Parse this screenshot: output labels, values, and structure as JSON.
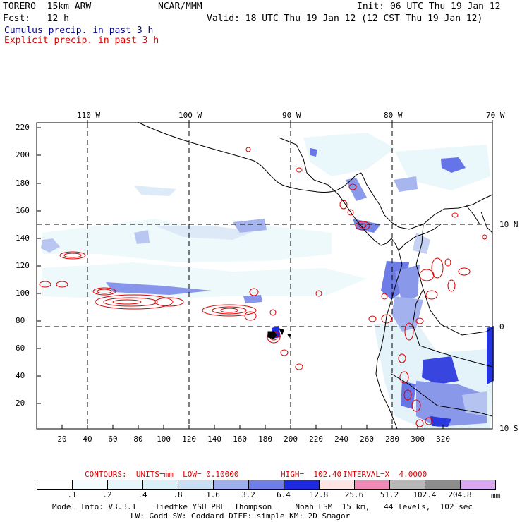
{
  "header": {
    "model": "TORERO  15km ARW",
    "org": "NCAR/MMM",
    "init": "Init: 06 UTC Thu 19 Jan 12",
    "fcst": "Fcst:   12 h",
    "valid": "Valid: 18 UTC Thu 19 Jan 12 (12 CST Thu 19 Jan 12)",
    "cumulus": "Cumulus precip. in past 3 h",
    "explicit": "Explicit precip. in past 3 h"
  },
  "map": {
    "lon_labels": [
      "110 W",
      "100 W",
      "90 W",
      "80 W",
      "70 W"
    ],
    "lat_labels": [
      "10 N",
      "0",
      "10 S"
    ],
    "y_ticks": [
      "220",
      "200",
      "180",
      "160",
      "140",
      "120",
      "100",
      "80",
      "60",
      "40",
      "20"
    ],
    "x_ticks": [
      "20",
      "40",
      "60",
      "80",
      "100",
      "120",
      "140",
      "160",
      "180",
      "200",
      "220",
      "240",
      "260",
      "280",
      "300",
      "320"
    ]
  },
  "contour_info": {
    "contours": "CONTOURS:  UNITS=mm  LOW= 0.10000",
    "high": "HIGH=  102.40",
    "interval": "INTERVAL=X  4.0000"
  },
  "colorbar": {
    "colors": [
      "#ffffff",
      "#f3fbff",
      "#e6f6fb",
      "#d8f0f6",
      "#c9dff4",
      "#9fb0ee",
      "#6f7fe8",
      "#1e2ae0",
      "#ffe4e4",
      "#f08ab6",
      "#b8b8b8",
      "#8c8c8c",
      "#d8a8f0"
    ],
    "labels": [
      ".1",
      ".2",
      ".4",
      ".8",
      "1.6",
      "3.2",
      "6.4",
      "12.8",
      "25.6",
      "51.2",
      "102.4",
      "204.8"
    ],
    "unit": "mm"
  },
  "footer": {
    "line1": "Model Info: V3.3.1    Tiedtke YSU PBL  Thompson     Noah LSM  15 km,   44 levels,  102 sec",
    "line2": "LW: Godd SW: Goddard DIFF: simple KM: 2D Smagor"
  }
}
